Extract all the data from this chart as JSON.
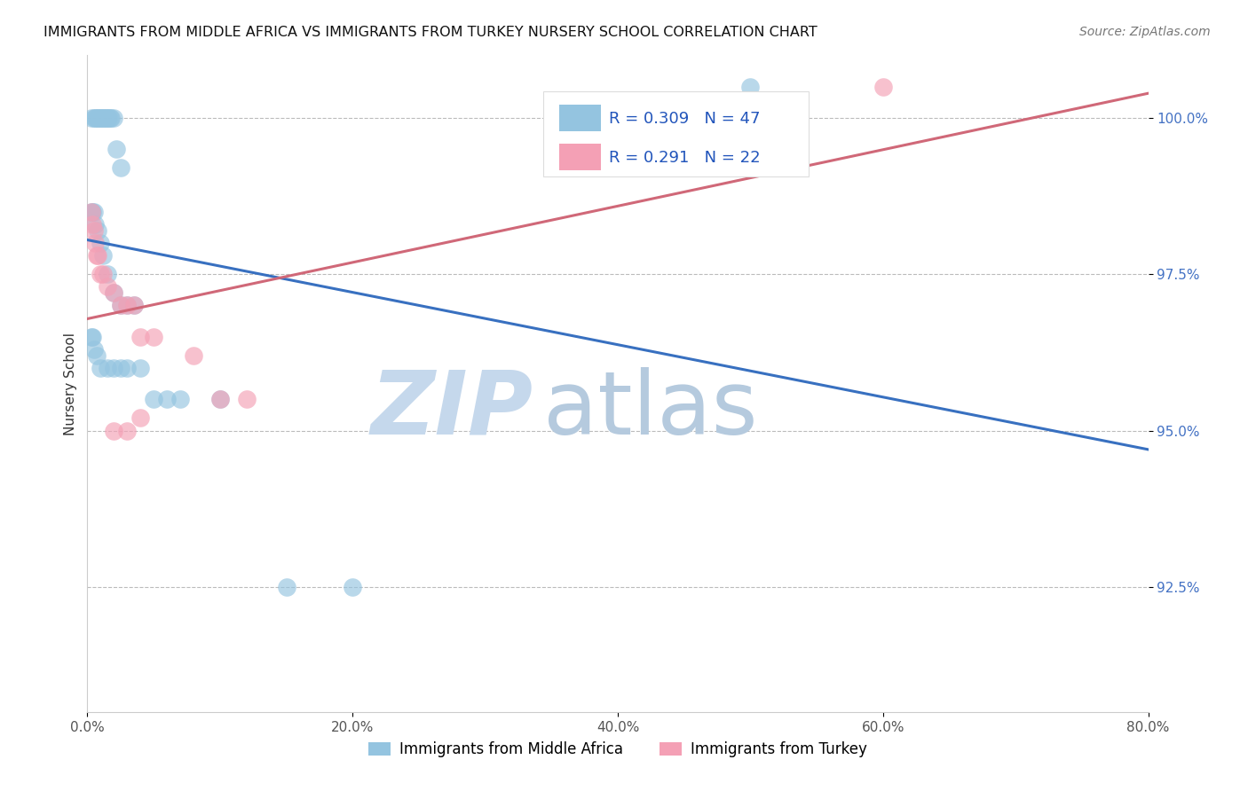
{
  "title": "IMMIGRANTS FROM MIDDLE AFRICA VS IMMIGRANTS FROM TURKEY NURSERY SCHOOL CORRELATION CHART",
  "source": "Source: ZipAtlas.com",
  "ylabel": "Nursery School",
  "xlim": [
    0.0,
    80.0
  ],
  "ylim": [
    90.5,
    101.0
  ],
  "yticks": [
    92.5,
    95.0,
    97.5,
    100.0
  ],
  "xticks": [
    0.0,
    20.0,
    40.0,
    60.0,
    80.0
  ],
  "blue_R": 0.309,
  "blue_N": 47,
  "pink_R": 0.291,
  "pink_N": 22,
  "blue_color": "#94C4E0",
  "pink_color": "#F4A0B5",
  "blue_line_color": "#3870C0",
  "pink_line_color": "#D06878",
  "watermark_zip": "#C0D4EA",
  "watermark_atlas": "#B8C8D8",
  "legend_label_blue": "Immigrants from Middle Africa",
  "legend_label_pink": "Immigrants from Turkey",
  "blue_x": [
    0.3,
    0.5,
    0.6,
    0.7,
    0.8,
    0.9,
    1.0,
    1.1,
    1.2,
    1.3,
    1.4,
    1.5,
    1.6,
    1.7,
    1.8,
    2.0,
    2.2,
    2.5,
    0.3,
    0.4,
    0.5,
    0.6,
    0.8,
    1.0,
    1.2,
    1.5,
    2.0,
    2.5,
    3.0,
    3.5,
    0.3,
    0.4,
    0.5,
    0.7,
    1.0,
    1.5,
    2.0,
    2.5,
    3.0,
    4.0,
    5.0,
    6.0,
    7.0,
    10.0,
    15.0,
    20.0,
    50.0
  ],
  "blue_y": [
    100.0,
    100.0,
    100.0,
    100.0,
    100.0,
    100.0,
    100.0,
    100.0,
    100.0,
    100.0,
    100.0,
    100.0,
    100.0,
    100.0,
    100.0,
    100.0,
    99.5,
    99.2,
    98.5,
    98.5,
    98.5,
    98.3,
    98.2,
    98.0,
    97.8,
    97.5,
    97.2,
    97.0,
    97.0,
    97.0,
    96.5,
    96.5,
    96.3,
    96.2,
    96.0,
    96.0,
    96.0,
    96.0,
    96.0,
    96.0,
    95.5,
    95.5,
    95.5,
    95.5,
    92.5,
    92.5,
    100.5
  ],
  "pink_x": [
    0.3,
    0.4,
    0.5,
    0.6,
    0.7,
    0.8,
    1.0,
    1.2,
    1.5,
    2.0,
    2.5,
    3.0,
    3.5,
    4.0,
    5.0,
    8.0,
    10.0,
    12.0,
    2.0,
    3.0,
    4.0,
    60.0
  ],
  "pink_y": [
    98.5,
    98.3,
    98.2,
    98.0,
    97.8,
    97.8,
    97.5,
    97.5,
    97.3,
    97.2,
    97.0,
    97.0,
    97.0,
    96.5,
    96.5,
    96.2,
    95.5,
    95.5,
    95.0,
    95.0,
    95.2,
    100.5
  ]
}
